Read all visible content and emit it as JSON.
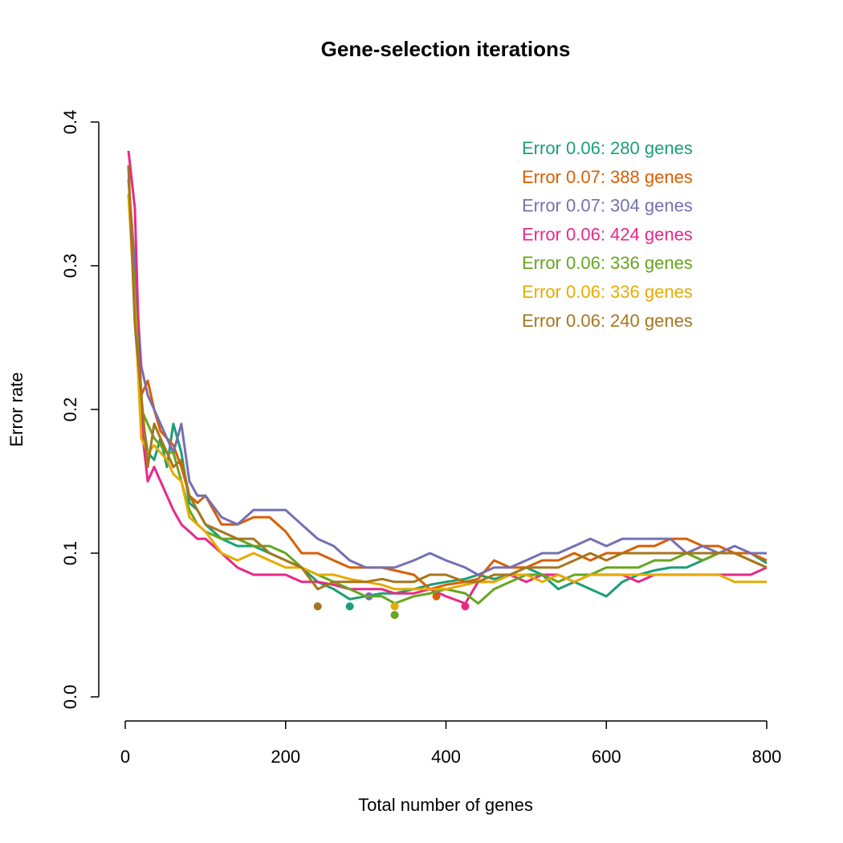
{
  "chart_data": {
    "type": "line",
    "title": "Gene-selection iterations",
    "xlabel": "Total number of genes",
    "ylabel": "Error rate",
    "xlim": [
      0,
      800
    ],
    "ylim": [
      0.0,
      0.4
    ],
    "x_ticks": [
      0,
      200,
      400,
      600,
      800
    ],
    "x_tick_labels": [
      "0",
      "200",
      "400",
      "600",
      "800"
    ],
    "y_ticks": [
      0.0,
      0.1,
      0.2,
      0.3,
      0.4
    ],
    "y_tick_labels": [
      "0.0",
      "0.1",
      "0.2",
      "0.3",
      "0.4"
    ],
    "grid": false,
    "legend_position": "top-right",
    "x": [
      4,
      12,
      20,
      28,
      36,
      44,
      52,
      60,
      70,
      80,
      90,
      100,
      120,
      140,
      160,
      180,
      200,
      220,
      240,
      260,
      280,
      300,
      320,
      336,
      360,
      380,
      400,
      424,
      440,
      460,
      480,
      500,
      520,
      540,
      560,
      580,
      600,
      620,
      640,
      660,
      680,
      700,
      720,
      740,
      760,
      780,
      800
    ],
    "series": [
      {
        "legend": "Error 0.06: 280 genes",
        "color": "#1b9e77",
        "min_point": {
          "x": 280,
          "y": 0.063
        },
        "values": [
          0.37,
          0.26,
          0.2,
          0.17,
          0.165,
          0.18,
          0.16,
          0.19,
          0.17,
          0.135,
          0.13,
          0.12,
          0.11,
          0.105,
          0.105,
          0.1,
          0.095,
          0.09,
          0.08,
          0.075,
          0.068,
          0.07,
          0.072,
          0.072,
          0.075,
          0.078,
          0.08,
          0.082,
          0.085,
          0.082,
          0.085,
          0.09,
          0.085,
          0.075,
          0.08,
          0.075,
          0.07,
          0.08,
          0.085,
          0.088,
          0.09,
          0.09,
          0.095,
          0.1,
          0.1,
          0.1,
          0.093
        ]
      },
      {
        "legend": "Error 0.07: 388 genes",
        "color": "#d95f02",
        "min_point": {
          "x": 388,
          "y": 0.07
        },
        "values": [
          0.36,
          0.3,
          0.21,
          0.22,
          0.2,
          0.185,
          0.18,
          0.175,
          0.16,
          0.14,
          0.135,
          0.14,
          0.12,
          0.12,
          0.125,
          0.125,
          0.115,
          0.1,
          0.1,
          0.095,
          0.09,
          0.09,
          0.09,
          0.088,
          0.085,
          0.075,
          0.078,
          0.08,
          0.082,
          0.095,
          0.09,
          0.09,
          0.095,
          0.095,
          0.1,
          0.095,
          0.1,
          0.1,
          0.105,
          0.105,
          0.11,
          0.11,
          0.105,
          0.105,
          0.1,
          0.1,
          0.095
        ]
      },
      {
        "legend": "Error 0.07: 304 genes",
        "color": "#7570b3",
        "min_point": {
          "x": 304,
          "y": 0.07
        },
        "values": [
          0.35,
          0.3,
          0.23,
          0.21,
          0.2,
          0.19,
          0.18,
          0.17,
          0.19,
          0.15,
          0.14,
          0.14,
          0.125,
          0.12,
          0.13,
          0.13,
          0.13,
          0.12,
          0.11,
          0.105,
          0.095,
          0.09,
          0.09,
          0.09,
          0.095,
          0.1,
          0.095,
          0.09,
          0.085,
          0.09,
          0.09,
          0.095,
          0.1,
          0.1,
          0.105,
          0.11,
          0.105,
          0.11,
          0.11,
          0.11,
          0.11,
          0.1,
          0.105,
          0.1,
          0.105,
          0.1,
          0.1
        ]
      },
      {
        "legend": "Error 0.06: 424 genes",
        "color": "#e7298a",
        "min_point": {
          "x": 424,
          "y": 0.063
        },
        "values": [
          0.38,
          0.34,
          0.19,
          0.15,
          0.16,
          0.15,
          0.14,
          0.13,
          0.12,
          0.115,
          0.11,
          0.11,
          0.1,
          0.09,
          0.085,
          0.085,
          0.085,
          0.08,
          0.08,
          0.078,
          0.075,
          0.075,
          0.075,
          0.072,
          0.072,
          0.075,
          0.07,
          0.065,
          0.08,
          0.08,
          0.085,
          0.08,
          0.085,
          0.085,
          0.08,
          0.085,
          0.085,
          0.085,
          0.08,
          0.085,
          0.085,
          0.085,
          0.085,
          0.085,
          0.085,
          0.085,
          0.09
        ]
      },
      {
        "legend": "Error 0.06: 336 genes",
        "color": "#66a61e",
        "min_point": {
          "x": 336,
          "y": 0.057
        },
        "values": [
          0.35,
          0.28,
          0.2,
          0.19,
          0.18,
          0.175,
          0.17,
          0.17,
          0.15,
          0.13,
          0.12,
          0.115,
          0.11,
          0.11,
          0.105,
          0.105,
          0.1,
          0.09,
          0.085,
          0.08,
          0.075,
          0.07,
          0.07,
          0.065,
          0.07,
          0.072,
          0.075,
          0.072,
          0.065,
          0.075,
          0.08,
          0.085,
          0.085,
          0.08,
          0.085,
          0.085,
          0.09,
          0.09,
          0.09,
          0.095,
          0.095,
          0.1,
          0.095,
          0.1,
          0.1,
          0.095,
          0.09
        ]
      },
      {
        "legend": "Error 0.06: 336 genes",
        "color": "#e6ab02",
        "min_point": {
          "x": 336,
          "y": 0.063
        },
        "values": [
          0.35,
          0.27,
          0.18,
          0.17,
          0.175,
          0.17,
          0.165,
          0.155,
          0.15,
          0.125,
          0.12,
          0.115,
          0.1,
          0.095,
          0.1,
          0.095,
          0.09,
          0.09,
          0.085,
          0.085,
          0.082,
          0.08,
          0.078,
          0.075,
          0.075,
          0.075,
          0.075,
          0.078,
          0.08,
          0.08,
          0.085,
          0.085,
          0.08,
          0.085,
          0.08,
          0.085,
          0.085,
          0.085,
          0.085,
          0.085,
          0.085,
          0.085,
          0.085,
          0.085,
          0.08,
          0.08,
          0.08
        ]
      },
      {
        "legend": "Error 0.06: 240 genes",
        "color": "#a6761d",
        "min_point": {
          "x": 240,
          "y": 0.063
        },
        "values": [
          0.37,
          0.26,
          0.21,
          0.16,
          0.19,
          0.18,
          0.17,
          0.16,
          0.165,
          0.14,
          0.13,
          0.12,
          0.115,
          0.11,
          0.11,
          0.1,
          0.095,
          0.09,
          0.075,
          0.08,
          0.08,
          0.08,
          0.082,
          0.08,
          0.08,
          0.085,
          0.085,
          0.08,
          0.08,
          0.085,
          0.085,
          0.09,
          0.09,
          0.09,
          0.095,
          0.1,
          0.095,
          0.1,
          0.1,
          0.1,
          0.1,
          0.1,
          0.1,
          0.1,
          0.1,
          0.095,
          0.09
        ]
      }
    ]
  }
}
